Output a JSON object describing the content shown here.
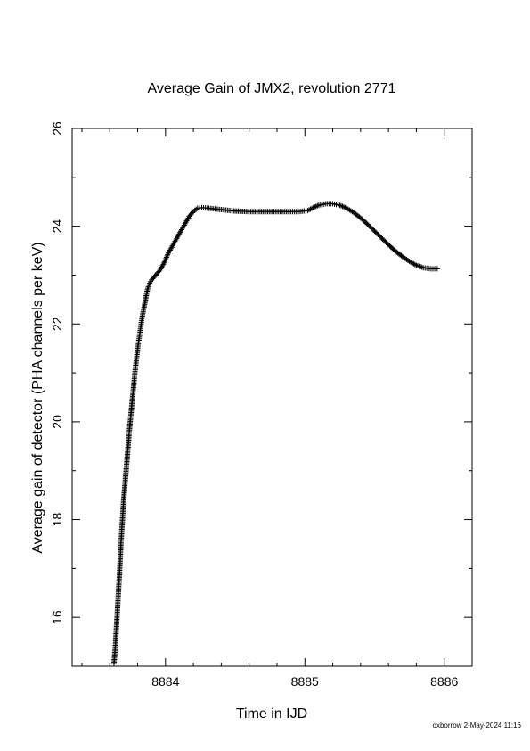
{
  "chart_data": {
    "type": "scatter",
    "title": "Average Gain of JMX2, revolution 2771",
    "xlabel": "Time in IJD",
    "ylabel": "Average gain of detector (PHA channels per keV)",
    "xlim": [
      8883.33,
      8886.2
    ],
    "ylim": [
      15,
      26
    ],
    "xticks": [
      8884,
      8885,
      8886
    ],
    "yticks": [
      16,
      18,
      20,
      22,
      24,
      26
    ],
    "xtick_labels": [
      "8884",
      "8885",
      "8886"
    ],
    "ytick_labels": [
      "16",
      "18",
      "20",
      "22",
      "24",
      "26"
    ],
    "grid": false,
    "marker": "plus",
    "series": [
      {
        "points": [
          [
            8883.63,
            15.05
          ],
          [
            8883.64,
            15.4
          ],
          [
            8883.65,
            15.9
          ],
          [
            8883.66,
            16.4
          ],
          [
            8883.67,
            16.9
          ],
          [
            8883.68,
            17.5
          ],
          [
            8883.69,
            17.95
          ],
          [
            8883.7,
            18.4
          ],
          [
            8883.71,
            18.75
          ],
          [
            8883.72,
            19.1
          ],
          [
            8883.73,
            19.45
          ],
          [
            8883.74,
            19.8
          ],
          [
            8883.75,
            20.1
          ],
          [
            8883.76,
            20.4
          ],
          [
            8883.77,
            20.7
          ],
          [
            8883.78,
            21.0
          ],
          [
            8883.79,
            21.25
          ],
          [
            8883.8,
            21.5
          ],
          [
            8883.81,
            21.7
          ],
          [
            8883.82,
            21.9
          ],
          [
            8883.83,
            22.1
          ],
          [
            8883.84,
            22.25
          ],
          [
            8883.85,
            22.4
          ],
          [
            8883.86,
            22.55
          ],
          [
            8883.87,
            22.7
          ],
          [
            8883.88,
            22.8
          ],
          [
            8883.9,
            22.9
          ],
          [
            8883.93,
            23.0
          ],
          [
            8883.96,
            23.1
          ],
          [
            8883.99,
            23.25
          ],
          [
            8884.02,
            23.45
          ],
          [
            8884.05,
            23.6
          ],
          [
            8884.08,
            23.75
          ],
          [
            8884.11,
            23.9
          ],
          [
            8884.14,
            24.05
          ],
          [
            8884.17,
            24.2
          ],
          [
            8884.2,
            24.3
          ],
          [
            8884.23,
            24.37
          ],
          [
            8884.26,
            24.38
          ],
          [
            8884.3,
            24.37
          ],
          [
            8884.4,
            24.34
          ],
          [
            8884.5,
            24.31
          ],
          [
            8884.6,
            24.3
          ],
          [
            8884.7,
            24.3
          ],
          [
            8884.8,
            24.3
          ],
          [
            8884.9,
            24.3
          ],
          [
            8884.96,
            24.3
          ],
          [
            8885.02,
            24.32
          ],
          [
            8885.06,
            24.38
          ],
          [
            8885.1,
            24.43
          ],
          [
            8885.15,
            24.46
          ],
          [
            8885.2,
            24.46
          ],
          [
            8885.25,
            24.43
          ],
          [
            8885.3,
            24.37
          ],
          [
            8885.35,
            24.28
          ],
          [
            8885.4,
            24.17
          ],
          [
            8885.45,
            24.04
          ],
          [
            8885.5,
            23.9
          ],
          [
            8885.55,
            23.76
          ],
          [
            8885.6,
            23.62
          ],
          [
            8885.65,
            23.49
          ],
          [
            8885.7,
            23.38
          ],
          [
            8885.75,
            23.28
          ],
          [
            8885.8,
            23.2
          ],
          [
            8885.85,
            23.15
          ],
          [
            8885.9,
            23.13
          ],
          [
            8885.95,
            23.13
          ]
        ]
      }
    ]
  },
  "footer": {
    "stamp": "oxborrow  2-May-2024 11:16"
  }
}
